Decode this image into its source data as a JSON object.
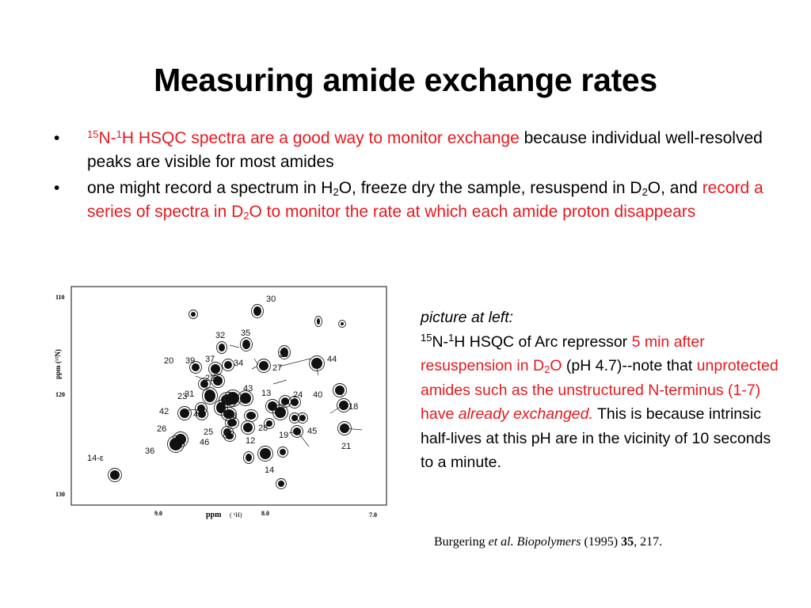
{
  "slide": {
    "title": "Measuring amide exchange rates",
    "bullet_marker": "•",
    "bullets": [
      {
        "parts": [
          {
            "t": "15",
            "style": "sup red"
          },
          {
            "t": "N-",
            "style": "red"
          },
          {
            "t": "1",
            "style": "sup red"
          },
          {
            "t": "H HSQC spectra are a good way to monitor exchange",
            "style": "red"
          },
          {
            "t": " because individual well-resolved peaks are visible for most amides",
            "style": ""
          }
        ]
      },
      {
        "parts": [
          {
            "t": "one might record a spectrum in H",
            "style": ""
          },
          {
            "t": "2",
            "style": "sub"
          },
          {
            "t": "O, freeze dry the sample, resuspend in D",
            "style": ""
          },
          {
            "t": "2",
            "style": "sub"
          },
          {
            "t": "O, and ",
            "style": ""
          },
          {
            "t": "record a series of spectra in D",
            "style": "red"
          },
          {
            "t": "2",
            "style": "sub red"
          },
          {
            "t": "O to monitor the rate at which each amide proton disappears",
            "style": "red"
          }
        ]
      }
    ],
    "caption": {
      "parts": [
        {
          "t": "picture at left:",
          "style": "italic"
        },
        {
          "t": "",
          "style": "br"
        },
        {
          "t": "15",
          "style": "sup"
        },
        {
          "t": "N-",
          "style": ""
        },
        {
          "t": "1",
          "style": "sup"
        },
        {
          "t": "H HSQC of Arc repressor ",
          "style": ""
        },
        {
          "t": "5 min after resuspension in D",
          "style": "red"
        },
        {
          "t": "2",
          "style": "sub red"
        },
        {
          "t": "O",
          "style": "red"
        },
        {
          "t": " (pH 4.7)--note that ",
          "style": ""
        },
        {
          "t": "unprotected amides such as the unstructured N-terminus (1-7) have ",
          "style": "red"
        },
        {
          "t": "already exchanged.",
          "style": "red italic"
        },
        {
          "t": "  This is because intrinsic half-lives at this pH are in the vicinity of 10 seconds to a minute.",
          "style": ""
        }
      ]
    },
    "reference": {
      "parts": [
        {
          "t": "Burgering ",
          "style": ""
        },
        {
          "t": "et al. Biopolymers",
          "style": "italic"
        },
        {
          "t": " (1995) ",
          "style": ""
        },
        {
          "t": "35",
          "style": "bold"
        },
        {
          "t": ", 217.",
          "style": ""
        }
      ]
    }
  },
  "spectrum": {
    "y_axis_label": "ppm (¹⁵N)",
    "x_axis_label": "ppm",
    "x_axis_unit": "( ¹H)",
    "y_ticks": [
      "110",
      "120",
      "130"
    ],
    "x_ticks": [
      "9.0",
      "8.0",
      "7.0"
    ],
    "peak_labels": [
      "30",
      "32",
      "35",
      "20",
      "39",
      "37",
      "34",
      "29",
      "44",
      "22",
      "27",
      "23",
      "31",
      "43",
      "13",
      "24",
      "40",
      "18",
      "42",
      "41",
      "38",
      "28",
      "45",
      "26",
      "25",
      "46",
      "12",
      "19",
      "36",
      "21",
      "14",
      "14-ε"
    ]
  }
}
